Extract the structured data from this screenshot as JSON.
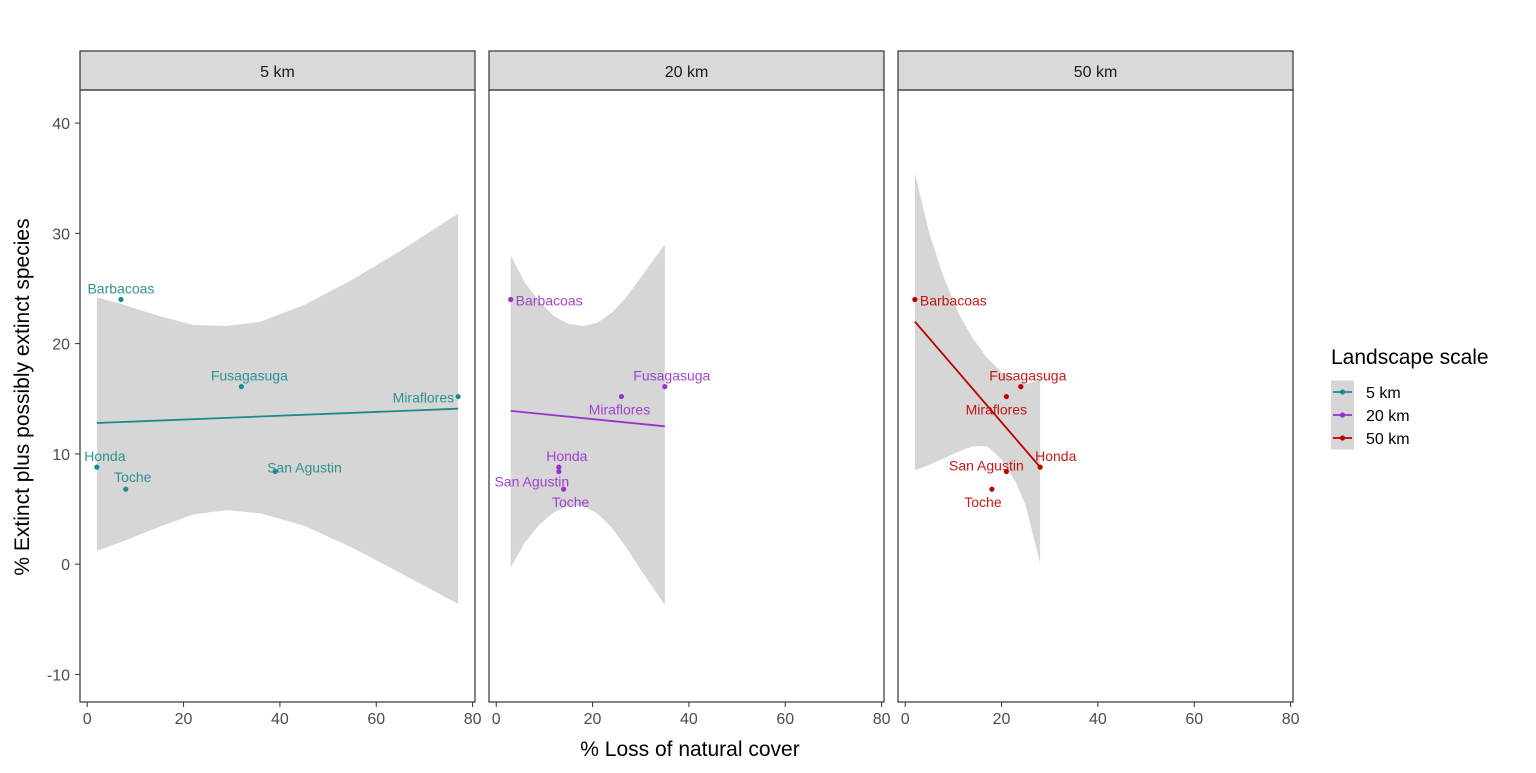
{
  "chart_data": {
    "type": "scatter",
    "xlabel": "% Loss of natural cover",
    "ylabel": "% Extinct plus possibly extinct species",
    "xlim": [
      -1.5,
      80.5
    ],
    "ylim": [
      -12.5,
      43
    ],
    "x_ticks": [
      0,
      20,
      40,
      60,
      80
    ],
    "y_ticks": [
      -10,
      0,
      10,
      20,
      30,
      40
    ],
    "grid": false,
    "legend": {
      "title": "Landscape scale",
      "position": "right",
      "entries": [
        {
          "label": "5 km",
          "color": "#1B8A8A"
        },
        {
          "label": "20 km",
          "color": "#9932CC"
        },
        {
          "label": "50 km",
          "color": "#C00000"
        }
      ]
    },
    "panels": [
      {
        "title": "5 km",
        "color": "#1B8A8A",
        "points": [
          {
            "label": "Barbacoas",
            "x": 7,
            "y": 24
          },
          {
            "label": "Fusagasuga",
            "x": 32,
            "y": 16.1
          },
          {
            "label": "Miraflores",
            "x": 77,
            "y": 15.2
          },
          {
            "label": "Honda",
            "x": 2,
            "y": 8.8
          },
          {
            "label": "Toche",
            "x": 8,
            "y": 6.8
          },
          {
            "label": "San Agustin",
            "x": 39,
            "y": 8.4
          }
        ],
        "fit": {
          "x": [
            2,
            77
          ],
          "y": [
            12.8,
            14.1
          ]
        },
        "band": {
          "x": [
            2,
            7,
            15,
            22,
            29,
            36,
            45,
            55,
            65,
            77
          ],
          "upper": [
            24.2,
            23.6,
            22.5,
            21.7,
            21.6,
            22.0,
            23.5,
            25.8,
            28.4,
            31.8
          ],
          "lower": [
            1.2,
            2.0,
            3.4,
            4.5,
            4.9,
            4.6,
            3.5,
            1.5,
            -0.8,
            -3.6
          ]
        }
      },
      {
        "title": "20 km",
        "color": "#9932CC",
        "points": [
          {
            "label": "Barbacoas",
            "x": 3,
            "y": 24
          },
          {
            "label": "Fusagasuga",
            "x": 35,
            "y": 16.1
          },
          {
            "label": "Miraflores",
            "x": 26,
            "y": 15.2
          },
          {
            "label": "Honda",
            "x": 13,
            "y": 8.8
          },
          {
            "label": "San Agustin",
            "x": 13,
            "y": 8.4
          },
          {
            "label": "Toche",
            "x": 14,
            "y": 6.8
          }
        ],
        "fit": {
          "x": [
            3,
            35
          ],
          "y": [
            13.9,
            12.5
          ]
        },
        "band": {
          "x": [
            3,
            6,
            9,
            12,
            15,
            18,
            21,
            24,
            27,
            30,
            35
          ],
          "upper": [
            28,
            25.5,
            23.8,
            22.5,
            21.8,
            21.6,
            21.9,
            22.8,
            24.2,
            26,
            29
          ],
          "lower": [
            -0.3,
            2.0,
            3.6,
            4.7,
            5.3,
            5.3,
            4.6,
            3.3,
            1.5,
            -0.5,
            -3.7
          ]
        }
      },
      {
        "title": "50 km",
        "color": "#C00000",
        "points": [
          {
            "label": "Barbacoas",
            "x": 2,
            "y": 24
          },
          {
            "label": "Fusagasuga",
            "x": 24,
            "y": 16.1
          },
          {
            "label": "Miraflores",
            "x": 21,
            "y": 15.2
          },
          {
            "label": "Honda",
            "x": 28,
            "y": 8.8
          },
          {
            "label": "San Agustin",
            "x": 21,
            "y": 8.4
          },
          {
            "label": "Toche",
            "x": 18,
            "y": 6.8
          }
        ],
        "fit": {
          "x": [
            2,
            28
          ],
          "y": [
            22,
            8.8
          ]
        },
        "band": {
          "x": [
            2,
            5,
            8,
            11,
            14,
            17,
            20,
            23,
            25,
            28
          ],
          "upper": [
            35.5,
            30,
            26,
            22.8,
            20.5,
            18.7,
            17.4,
            16.7,
            16.3,
            16.7
          ],
          "lower": [
            8.5,
            9.0,
            9.6,
            10.2,
            10.7,
            10.7,
            9.5,
            7.4,
            5.3,
            0.1
          ]
        }
      }
    ]
  }
}
